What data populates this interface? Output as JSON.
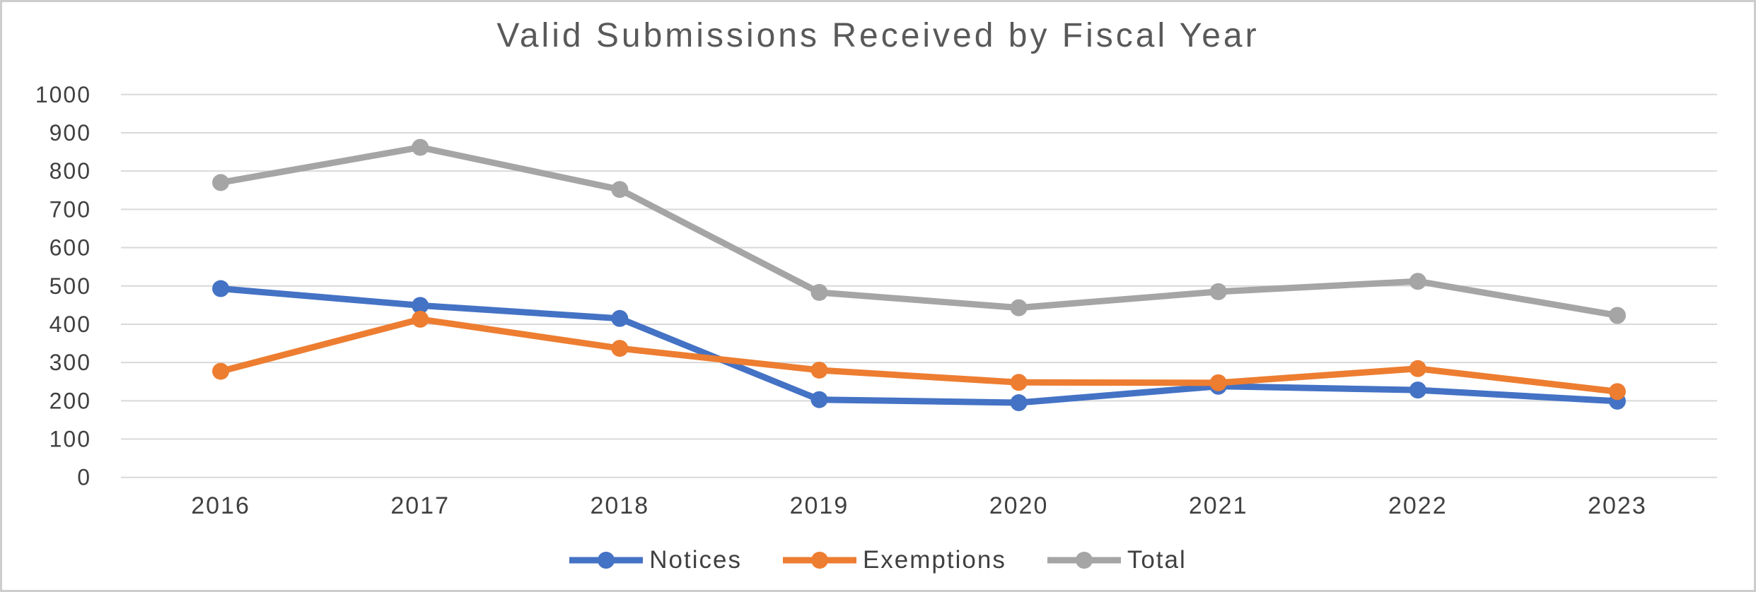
{
  "chart_data": {
    "type": "line",
    "title": "Valid Submissions Received by Fiscal Year",
    "xlabel": "",
    "ylabel": "",
    "categories": [
      "2016",
      "2017",
      "2018",
      "2019",
      "2020",
      "2021",
      "2022",
      "2023"
    ],
    "series": [
      {
        "name": "Notices",
        "color": "#4472C4",
        "values": [
          493,
          449,
          415,
          203,
          195,
          238,
          228,
          199
        ]
      },
      {
        "name": "Exemptions",
        "color": "#ED7D31",
        "values": [
          277,
          413,
          337,
          280,
          248,
          247,
          284,
          224
        ]
      },
      {
        "name": "Total",
        "color": "#A5A5A5",
        "values": [
          770,
          862,
          752,
          483,
          443,
          485,
          512,
          423
        ]
      }
    ],
    "ylim": [
      0,
      1000
    ],
    "ytick_step": 100,
    "ytick_labels": [
      "0",
      "100",
      "200",
      "300",
      "400",
      "500",
      "600",
      "700",
      "800",
      "900",
      "1000"
    ],
    "grid": "horizontal",
    "legend_position": "bottom",
    "marker": "circle"
  },
  "colors": {
    "background": "#FFFFFF",
    "gridline": "#D9D9D9",
    "title_text": "#595959",
    "tick_text": "#404040",
    "legend_text": "#404040",
    "frame_border": "#CDCDCD"
  }
}
